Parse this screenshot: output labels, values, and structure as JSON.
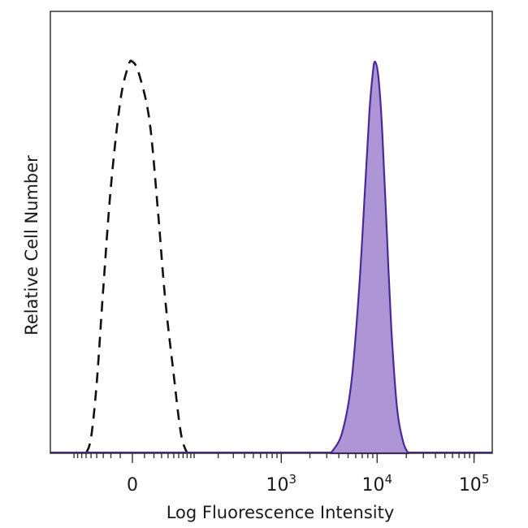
{
  "chart_data": {
    "type": "area",
    "xlabel": "Log Fluorescence Intensity",
    "ylabel": "Relative Cell Number",
    "x_scale": "biexponential",
    "xlim": [
      -100,
      200000
    ],
    "ylim": [
      0,
      1
    ],
    "grid": false,
    "legend": "none",
    "x_ticks": [
      {
        "value": 0,
        "base": "0",
        "exp": ""
      },
      {
        "value": 1000,
        "base": "10",
        "exp": "3"
      },
      {
        "value": 10000,
        "base": "10",
        "exp": "4"
      },
      {
        "value": 100000,
        "base": "10",
        "exp": "5"
      }
    ],
    "series": [
      {
        "style": "dashed-outline",
        "color": "#111111",
        "x": [
          -60,
          -50,
          -40,
          -30,
          -20,
          -10,
          -3,
          0,
          5,
          15,
          25,
          35,
          50,
          65,
          80
        ],
        "y": [
          0.0,
          0.04,
          0.18,
          0.42,
          0.68,
          0.9,
          0.99,
          1.0,
          0.97,
          0.85,
          0.62,
          0.4,
          0.2,
          0.05,
          0.0
        ]
      },
      {
        "style": "filled",
        "color": "#4a2a9a",
        "fill": "#ae95d6",
        "x": [
          3300,
          4300,
          5400,
          6500,
          7500,
          8300,
          9000,
          9500,
          10300,
          11300,
          12500,
          14000,
          16000,
          18500,
          21000
        ],
        "y": [
          0.0,
          0.05,
          0.18,
          0.42,
          0.68,
          0.87,
          0.97,
          1.0,
          0.96,
          0.82,
          0.58,
          0.32,
          0.12,
          0.03,
          0.0
        ]
      }
    ]
  }
}
